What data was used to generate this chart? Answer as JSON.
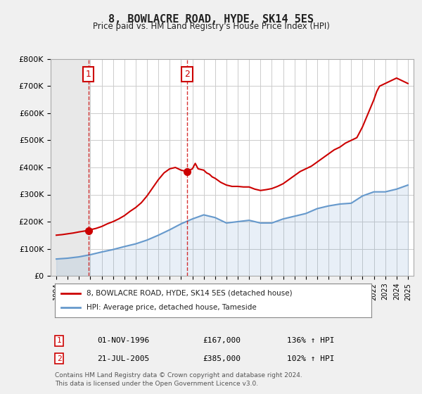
{
  "title": "8, BOWLACRE ROAD, HYDE, SK14 5ES",
  "subtitle": "Price paid vs. HM Land Registry's House Price Index (HPI)",
  "hpi_label": "HPI: Average price, detached house, Tameside",
  "price_label": "8, BOWLACRE ROAD, HYDE, SK14 5ES (detached house)",
  "footer1": "Contains HM Land Registry data © Crown copyright and database right 2024.",
  "footer2": "This data is licensed under the Open Government Licence v3.0.",
  "sale1_date": "01-NOV-1996",
  "sale1_price": "£167,000",
  "sale1_hpi": "136% ↑ HPI",
  "sale2_date": "21-JUL-2005",
  "sale2_price": "£385,000",
  "sale2_hpi": "102% ↑ HPI",
  "bg_color": "#f0f0f0",
  "plot_bg_color": "#ffffff",
  "hpi_color": "#6699cc",
  "price_color": "#cc0000",
  "hatch_color": "#dddddd",
  "ylim": [
    0,
    800000
  ],
  "yticks": [
    0,
    100000,
    200000,
    300000,
    400000,
    500000,
    600000,
    700000,
    800000
  ],
  "hpi_years": [
    1994,
    1995,
    1996,
    1997,
    1998,
    1999,
    2000,
    2001,
    2002,
    2003,
    2004,
    2005,
    2006,
    2007,
    2008,
    2009,
    2010,
    2011,
    2012,
    2013,
    2014,
    2015,
    2016,
    2017,
    2018,
    2019,
    2020,
    2021,
    2022,
    2023,
    2024,
    2025
  ],
  "hpi_values": [
    62000,
    65000,
    70000,
    78000,
    88000,
    97000,
    108000,
    118000,
    132000,
    150000,
    170000,
    192000,
    210000,
    225000,
    215000,
    195000,
    200000,
    205000,
    195000,
    195000,
    210000,
    220000,
    230000,
    248000,
    258000,
    265000,
    268000,
    295000,
    310000,
    310000,
    320000,
    335000
  ],
  "price_years": [
    1994.0,
    1994.5,
    1995.0,
    1995.5,
    1996.0,
    1996.75,
    1997.0,
    1997.5,
    1998.0,
    1998.5,
    1999.0,
    1999.5,
    2000.0,
    2000.5,
    2001.0,
    2001.5,
    2002.0,
    2002.5,
    2003.0,
    2003.5,
    2004.0,
    2004.5,
    2005.0,
    2005.5,
    2006.0,
    2006.25,
    2006.5,
    2007.0,
    2007.25,
    2007.5,
    2007.75,
    2008.0,
    2008.5,
    2009.0,
    2009.5,
    2010.0,
    2010.5,
    2011.0,
    2011.5,
    2012.0,
    2012.5,
    2013.0,
    2013.5,
    2014.0,
    2014.5,
    2015.0,
    2015.5,
    2016.0,
    2016.5,
    2017.0,
    2017.5,
    2018.0,
    2018.5,
    2019.0,
    2019.5,
    2020.0,
    2020.5,
    2021.0,
    2021.5,
    2022.0,
    2022.25,
    2022.5,
    2023.0,
    2023.5,
    2024.0,
    2024.5,
    2025.0
  ],
  "price_values": [
    150000,
    152000,
    155000,
    158000,
    162000,
    167000,
    170000,
    175000,
    182000,
    192000,
    200000,
    210000,
    222000,
    238000,
    252000,
    270000,
    295000,
    325000,
    355000,
    380000,
    395000,
    400000,
    390000,
    385000,
    395000,
    415000,
    395000,
    390000,
    380000,
    375000,
    365000,
    360000,
    345000,
    335000,
    330000,
    330000,
    328000,
    328000,
    320000,
    315000,
    318000,
    322000,
    330000,
    340000,
    355000,
    370000,
    385000,
    395000,
    405000,
    420000,
    435000,
    450000,
    465000,
    475000,
    490000,
    500000,
    510000,
    550000,
    600000,
    650000,
    680000,
    700000,
    710000,
    720000,
    730000,
    720000,
    710000
  ],
  "sale1_x": 1996.833,
  "sale1_y": 167000,
  "sale2_x": 2005.54,
  "sale2_y": 385000,
  "xlim_start": 1993.5,
  "xlim_end": 2025.5,
  "xticks": [
    1994,
    1995,
    1996,
    1997,
    1998,
    1999,
    2000,
    2001,
    2002,
    2003,
    2004,
    2005,
    2006,
    2007,
    2008,
    2009,
    2010,
    2011,
    2012,
    2013,
    2014,
    2015,
    2016,
    2017,
    2018,
    2019,
    2020,
    2021,
    2022,
    2023,
    2024,
    2025
  ]
}
